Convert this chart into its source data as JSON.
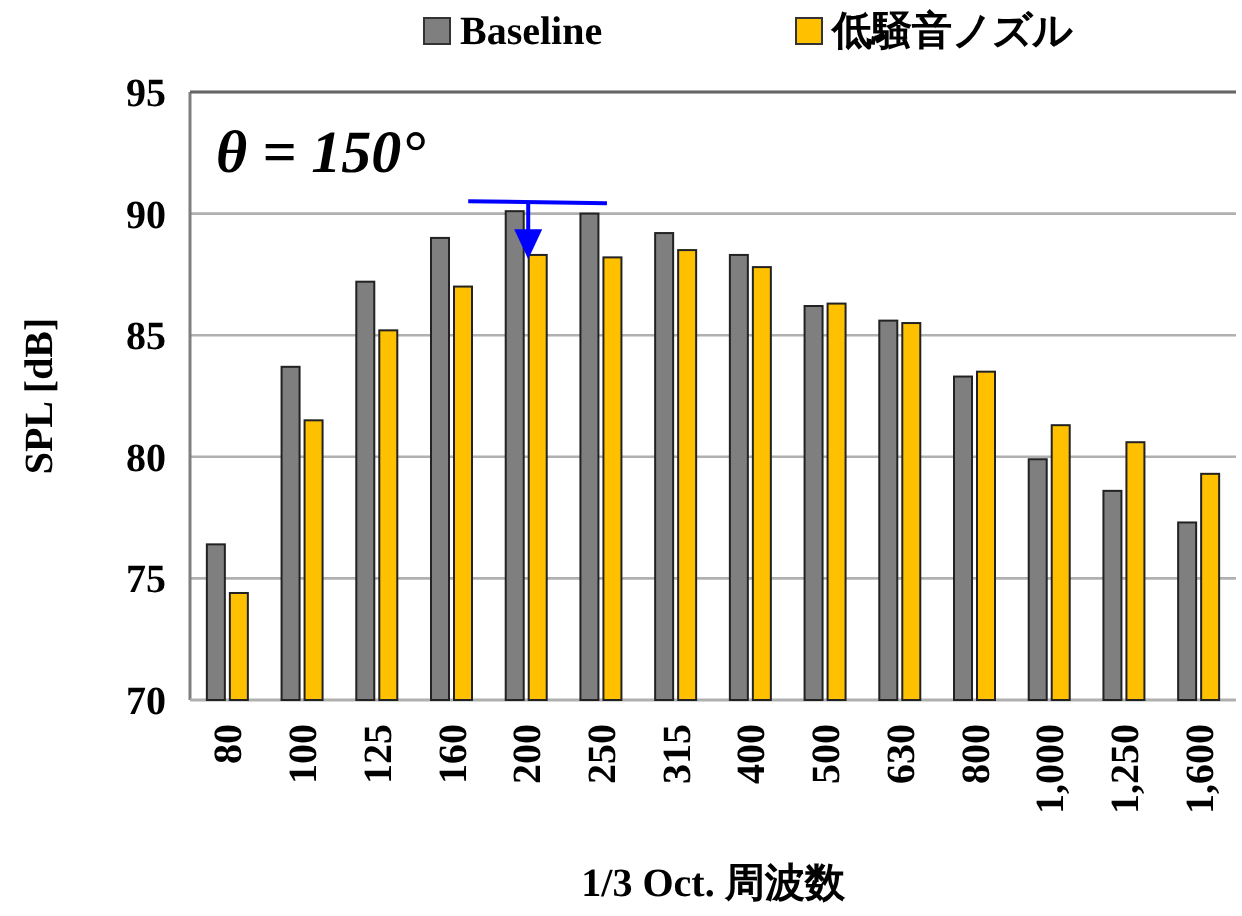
{
  "chart_data": {
    "type": "bar",
    "categories": [
      "80",
      "100",
      "125",
      "160",
      "200",
      "250",
      "315",
      "400",
      "500",
      "630",
      "800",
      "1,000",
      "1,250",
      "1,600"
    ],
    "series": [
      {
        "name": "Baseline",
        "color": "#7f7f7f",
        "values": [
          76.4,
          83.7,
          87.2,
          89.0,
          90.1,
          90.0,
          89.2,
          88.3,
          86.2,
          85.6,
          83.3,
          79.9,
          78.6,
          77.3
        ]
      },
      {
        "name": "低騒音ノズル",
        "color": "#ffc000",
        "values": [
          74.4,
          81.5,
          85.2,
          87.0,
          88.3,
          88.2,
          88.5,
          87.8,
          86.3,
          85.5,
          83.5,
          81.3,
          80.6,
          79.3
        ]
      }
    ],
    "ylim": [
      70,
      95
    ],
    "yticks": [
      70,
      75,
      80,
      85,
      90,
      95
    ],
    "grid": "y",
    "legend": "top",
    "xlabel": "1/3 Oct. 周波数",
    "ylabel": "SPL [dB]",
    "annotations": [
      "θ = 150°"
    ]
  }
}
